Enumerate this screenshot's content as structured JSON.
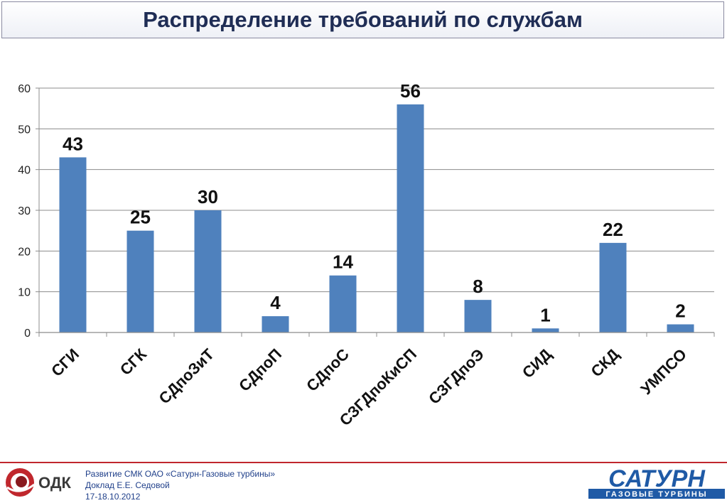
{
  "header": {
    "title": "Распределение требований по службам"
  },
  "chart_data": {
    "type": "bar",
    "title": "",
    "xlabel": "",
    "ylabel": "",
    "categories": [
      "СГИ",
      "СГК",
      "СДпоЗиТ",
      "СДпоП",
      "СДпоС",
      "СЗГДпоКиСП",
      "СЗГДпоЭ",
      "СИД",
      "СКД",
      "УМПСО"
    ],
    "values": [
      43,
      25,
      30,
      4,
      14,
      56,
      8,
      1,
      22,
      2
    ],
    "ylim": [
      0,
      60
    ],
    "yticks": [
      0,
      10,
      20,
      30,
      40,
      50,
      60
    ],
    "grid": true,
    "legend": "none",
    "bar_color": "#4f81bd"
  },
  "footer": {
    "line1": "Развитие СМК ОАО «Сатурн-Газовые турбины»",
    "line2": "Доклад Е.Е. Седовой",
    "line3": "17-18.10.2012",
    "odk_logo_text": "ОДК",
    "saturn_logo_text": "САТУРН",
    "saturn_logo_subtext": "ГАЗОВЫЕ ТУРБИНЫ",
    "accent_color": "#c0272d",
    "brand_color": "#1f5aa6"
  }
}
